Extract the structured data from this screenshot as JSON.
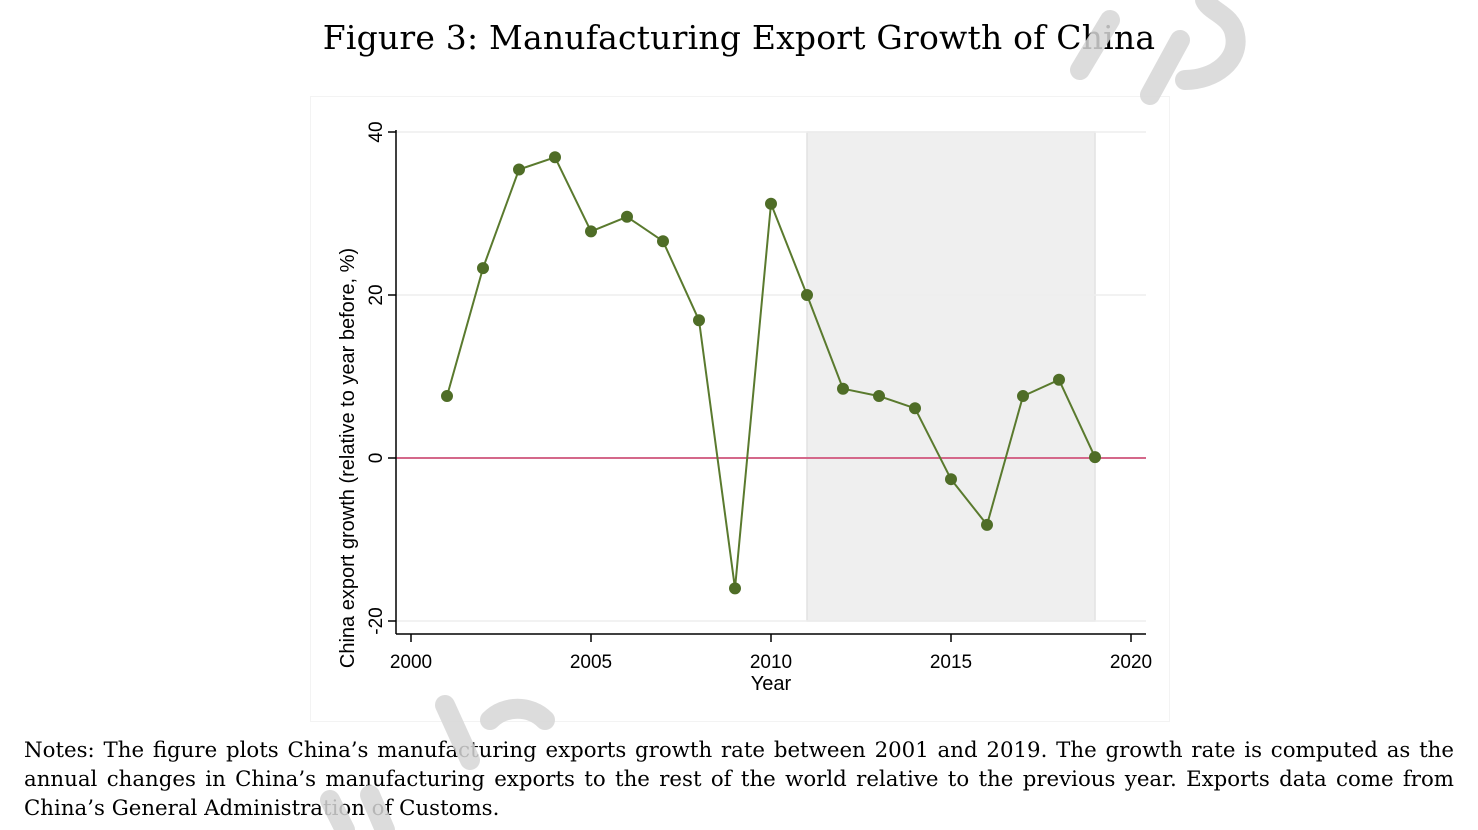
{
  "figure": {
    "title": "Figure 3: Manufacturing Export Growth of China",
    "notes": "Notes: The figure plots China’s manufacturing exports growth rate between 2001 and 2019. The growth rate is computed as the annual changes in China’s manufacturing exports to the rest of the world relative to the previous year. Exports data come from China’s General Administration of Customs."
  },
  "chart_data": {
    "type": "line",
    "title": "",
    "xlabel": "Year",
    "ylabel": "China export growth (relative to year before, %)",
    "xlim": [
      2000,
      2020
    ],
    "ylim": [
      -20,
      40
    ],
    "xticks": [
      2000,
      2005,
      2010,
      2015,
      2020
    ],
    "yticks": [
      -20,
      0,
      20,
      40
    ],
    "grid": "horizontal",
    "legend": "none",
    "series": [
      {
        "x": [
          2001,
          2002,
          2003,
          2004,
          2005,
          2006,
          2007,
          2008,
          2009,
          2010,
          2011,
          2012,
          2013,
          2014,
          2015,
          2016,
          2017,
          2018,
          2019
        ],
        "values": [
          7.6,
          23.3,
          35.4,
          36.9,
          27.8,
          29.6,
          26.6,
          16.9,
          -16.0,
          31.2,
          20.0,
          8.5,
          7.6,
          6.1,
          -2.6,
          -8.2,
          7.6,
          9.6,
          0.1
        ],
        "color": "#5a7a2e"
      }
    ],
    "reference_line": {
      "y": 0,
      "color": "#d4688a"
    },
    "shaded_region": {
      "x": [
        2011,
        2019
      ],
      "color": "#efefef"
    }
  },
  "colors": {
    "line": "#5a7a2e",
    "marker": "#4f6d27",
    "zero_line": "#d4688a",
    "shade": "#efefef",
    "axis": "#000000",
    "grid": "#eeeeee",
    "watermark": "#d9d9d9"
  }
}
